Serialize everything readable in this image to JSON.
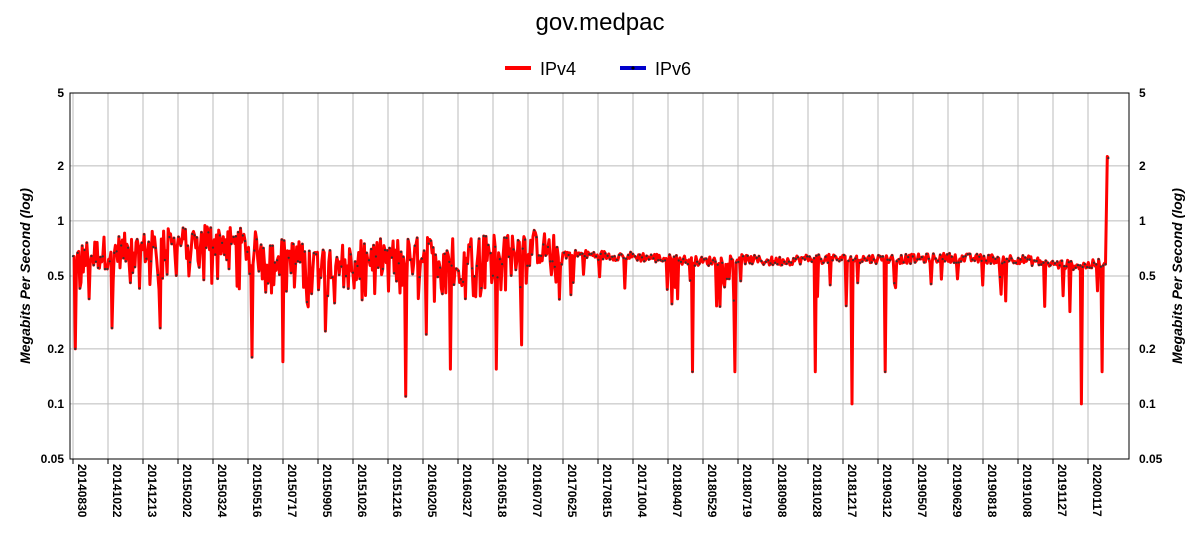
{
  "chart_data": {
    "type": "line",
    "title": "gov.medpac",
    "ylabel_left": "Megabits Per Second (log)",
    "ylabel_right": "Megabits Per Second (log)",
    "yscale": "log",
    "ylim": [
      0.05,
      5
    ],
    "yticks": [
      5,
      2,
      1,
      0.5,
      0.2,
      0.1,
      0.05
    ],
    "ytick_labels": [
      "5",
      "2",
      "1",
      "0.5",
      "0.2",
      "0.1",
      "0.05"
    ],
    "grid": true,
    "legend_position": "top-center",
    "x_categories": [
      "20140830",
      "20141022",
      "20141213",
      "20150202",
      "20150324",
      "20150516",
      "20150717",
      "20150905",
      "20151026",
      "20151216",
      "20160205",
      "20160327",
      "20160518",
      "20160707",
      "20170625",
      "20170815",
      "20171004",
      "20180407",
      "20180529",
      "20180719",
      "20180908",
      "20181028",
      "20181217",
      "20190312",
      "20190507",
      "20190629",
      "20190818",
      "20191008",
      "20191127",
      "20200117"
    ],
    "series": [
      {
        "name": "IPv4",
        "color": "#ff0000",
        "anchors": [
          {
            "x": 0.0,
            "y": 0.6
          },
          {
            "x": 1.0,
            "y": 0.68
          },
          {
            "x": 2.0,
            "y": 0.7
          },
          {
            "x": 3.0,
            "y": 0.75
          },
          {
            "x": 4.0,
            "y": 0.8
          },
          {
            "x": 5.0,
            "y": 0.72
          },
          {
            "x": 6.0,
            "y": 0.65
          },
          {
            "x": 7.0,
            "y": 0.6
          },
          {
            "x": 8.0,
            "y": 0.62
          },
          {
            "x": 9.0,
            "y": 0.65
          },
          {
            "x": 10.0,
            "y": 0.66
          },
          {
            "x": 11.0,
            "y": 0.66
          },
          {
            "x": 12.0,
            "y": 0.7
          },
          {
            "x": 13.0,
            "y": 0.74
          },
          {
            "x": 14.0,
            "y": 0.66
          },
          {
            "x": 15.0,
            "y": 0.65
          },
          {
            "x": 16.0,
            "y": 0.64
          },
          {
            "x": 17.0,
            "y": 0.62
          },
          {
            "x": 18.0,
            "y": 0.6
          },
          {
            "x": 19.0,
            "y": 0.62
          },
          {
            "x": 20.0,
            "y": 0.6
          },
          {
            "x": 21.0,
            "y": 0.62
          },
          {
            "x": 22.0,
            "y": 0.62
          },
          {
            "x": 23.0,
            "y": 0.62
          },
          {
            "x": 24.0,
            "y": 0.62
          },
          {
            "x": 25.0,
            "y": 0.63
          },
          {
            "x": 26.0,
            "y": 0.62
          },
          {
            "x": 27.0,
            "y": 0.62
          },
          {
            "x": 28.0,
            "y": 0.58
          },
          {
            "x": 29.0,
            "y": 0.57
          },
          {
            "x": 29.5,
            "y": 0.6
          }
        ],
        "dips": [
          {
            "x": 0.05,
            "y": 0.2
          },
          {
            "x": 1.1,
            "y": 0.26
          },
          {
            "x": 2.5,
            "y": 0.26
          },
          {
            "x": 5.1,
            "y": 0.18
          },
          {
            "x": 6.0,
            "y": 0.17
          },
          {
            "x": 7.2,
            "y": 0.25
          },
          {
            "x": 9.5,
            "y": 0.11
          },
          {
            "x": 10.1,
            "y": 0.24
          },
          {
            "x": 10.8,
            "y": 0.155
          },
          {
            "x": 12.1,
            "y": 0.155
          },
          {
            "x": 12.8,
            "y": 0.21
          },
          {
            "x": 17.7,
            "y": 0.15
          },
          {
            "x": 18.9,
            "y": 0.15
          },
          {
            "x": 21.2,
            "y": 0.15
          },
          {
            "x": 22.25,
            "y": 0.1
          },
          {
            "x": 23.2,
            "y": 0.15
          },
          {
            "x": 28.8,
            "y": 0.1
          },
          {
            "x": 29.4,
            "y": 0.15
          }
        ],
        "end_peak": {
          "x": 29.55,
          "y": 2.25
        }
      },
      {
        "name": "IPv6",
        "color": "#0000cc",
        "anchors": []
      }
    ]
  }
}
